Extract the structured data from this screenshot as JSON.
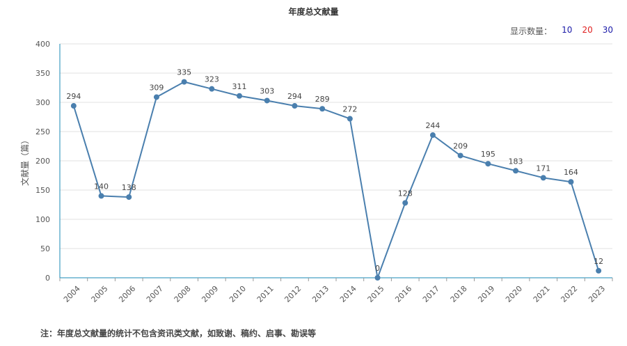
{
  "chart_data": {
    "type": "line",
    "title": "年度总文献量",
    "ylabel": "文献量（篇）",
    "xlabel": "",
    "categories": [
      "2004",
      "2005",
      "2006",
      "2007",
      "2008",
      "2009",
      "2010",
      "2011",
      "2012",
      "2013",
      "2014",
      "2015",
      "2016",
      "2017",
      "2018",
      "2019",
      "2020",
      "2021",
      "2022",
      "2023"
    ],
    "values": [
      294,
      140,
      138,
      309,
      335,
      323,
      311,
      303,
      294,
      289,
      272,
      0,
      128,
      244,
      209,
      195,
      183,
      171,
      164,
      12
    ],
    "ylim": [
      0,
      400
    ],
    "yticks": [
      "0",
      "50",
      "100",
      "150",
      "200",
      "250",
      "300",
      "350",
      "400"
    ],
    "grid": true,
    "line_color": "#4a7fae",
    "grid_color": "#e0e0e0",
    "axis_color": "#1a8ab5"
  },
  "display_count": {
    "label": "显示数量：",
    "options": [
      {
        "label": "10",
        "color": "#1a1aa8"
      },
      {
        "label": "20",
        "color": "#e02020"
      },
      {
        "label": "30",
        "color": "#1a1aa8"
      }
    ]
  },
  "note": "注：年度总文献量的统计不包含资讯类文献，如致谢、稿约、启事、勘误等"
}
